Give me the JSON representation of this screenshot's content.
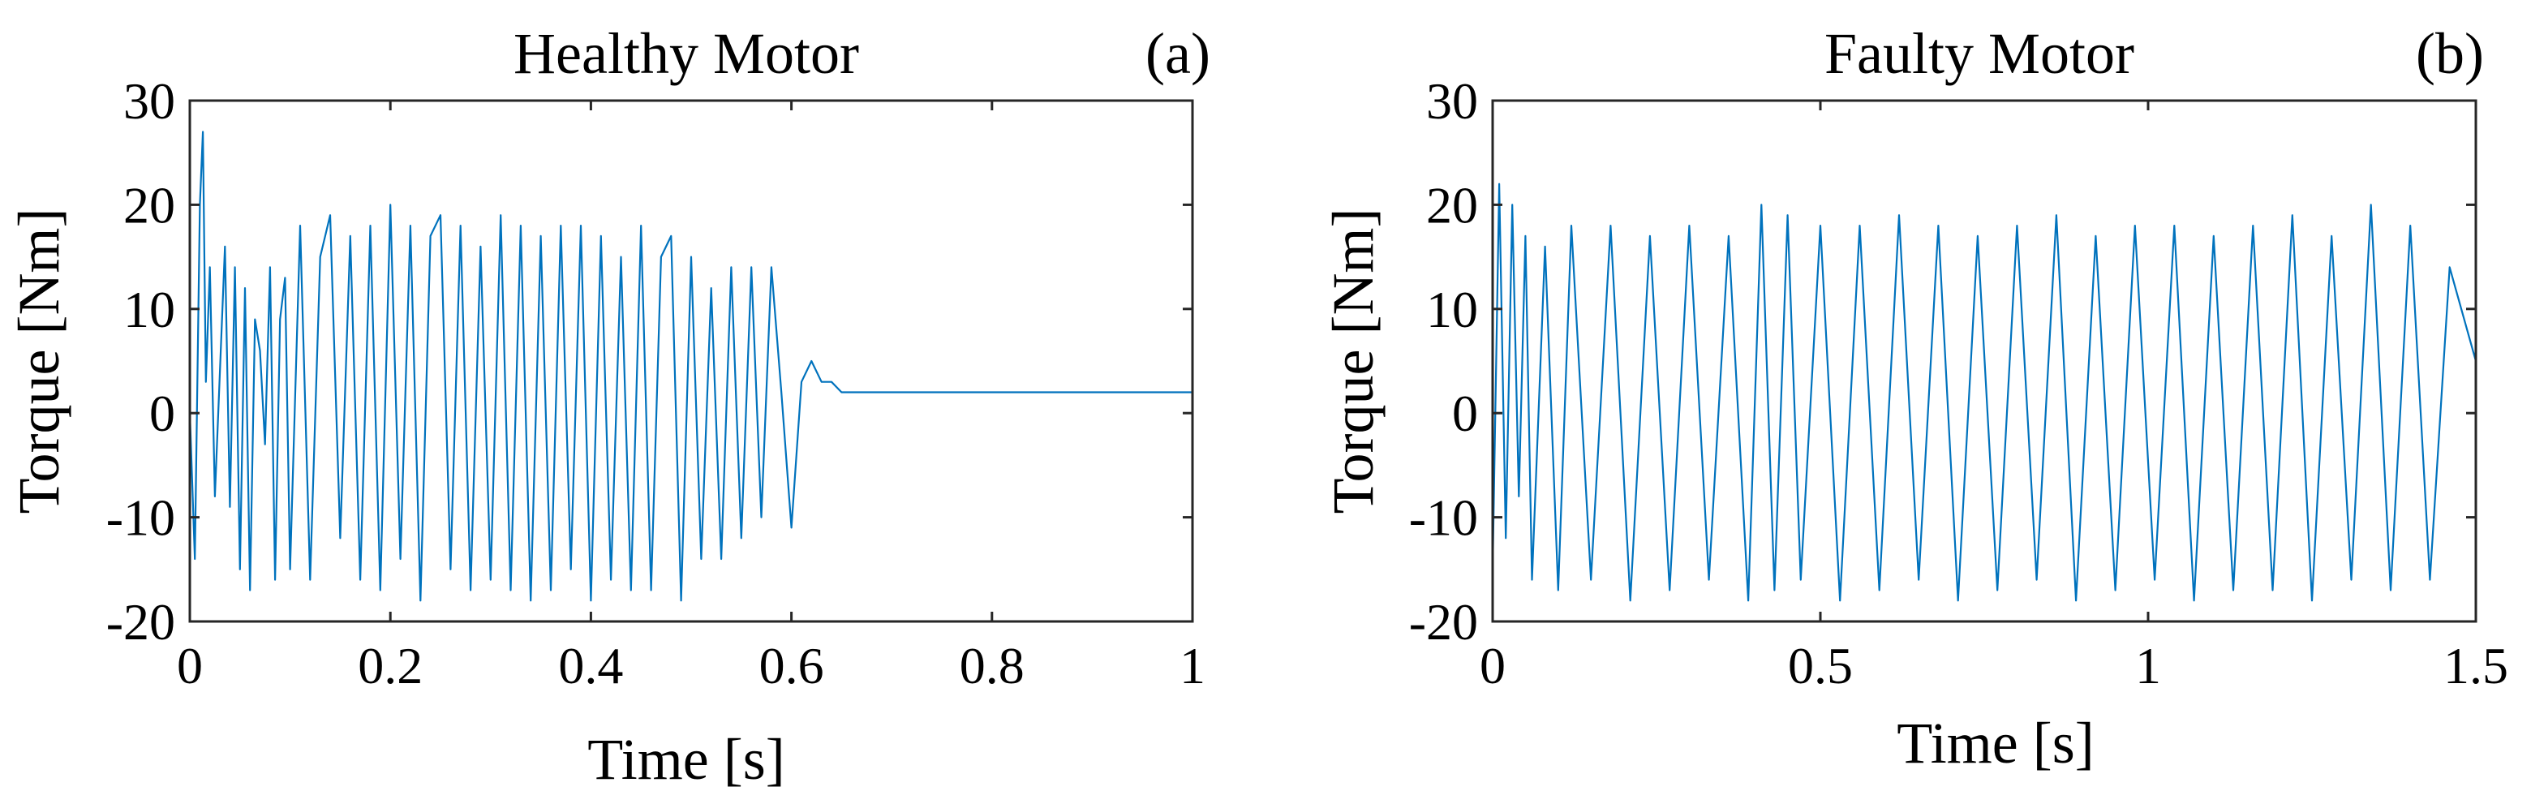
{
  "colors": {
    "signal": "#0072BD",
    "axes": "#262626",
    "background": "#ffffff"
  },
  "chart_data": [
    {
      "type": "line",
      "panel_tag": "(a)",
      "title": "Healthy Motor",
      "xlabel": "Time [s]",
      "ylabel": "Torque [Nm]",
      "xlim": [
        0,
        1
      ],
      "ylim": [
        -20,
        30
      ],
      "x_ticks": [
        0,
        0.2,
        0.4,
        0.6,
        0.8,
        1
      ],
      "x_tick_labels": [
        "0",
        "0.2",
        "0.4",
        "0.6",
        "0.8",
        "1"
      ],
      "y_ticks": [
        -20,
        -10,
        0,
        10,
        20,
        30
      ],
      "y_tick_labels": [
        "-20",
        "-10",
        "0",
        "10",
        "20",
        "30"
      ],
      "grid": false,
      "series": [
        {
          "x": [
            0,
            0.005,
            0.01,
            0.013,
            0.016,
            0.02,
            0.025,
            0.03,
            0.035,
            0.04,
            0.045,
            0.05,
            0.055,
            0.06,
            0.065,
            0.07,
            0.075,
            0.08,
            0.085,
            0.09,
            0.095,
            0.1,
            0.11,
            0.12,
            0.13,
            0.14,
            0.15,
            0.16,
            0.17,
            0.18,
            0.19,
            0.2,
            0.21,
            0.22,
            0.23,
            0.24,
            0.25,
            0.26,
            0.27,
            0.28,
            0.29,
            0.3,
            0.31,
            0.32,
            0.33,
            0.34,
            0.35,
            0.36,
            0.37,
            0.38,
            0.39,
            0.4,
            0.41,
            0.42,
            0.43,
            0.44,
            0.45,
            0.46,
            0.47,
            0.48,
            0.49,
            0.5,
            0.51,
            0.52,
            0.53,
            0.54,
            0.55,
            0.56,
            0.57,
            0.58,
            0.59,
            0.6,
            0.61,
            0.62,
            0.63,
            0.64,
            0.65,
            0.66,
            0.67,
            0.68,
            0.7,
            0.75,
            0.8,
            0.85,
            0.9,
            0.95,
            1
          ],
          "values": [
            0,
            -14,
            20,
            27,
            3,
            14,
            -8,
            4,
            16,
            -9,
            14,
            -15,
            12,
            -17,
            9,
            6,
            -3,
            14,
            -16,
            9,
            13,
            -15,
            18,
            -16,
            15,
            19,
            -12,
            17,
            -16,
            18,
            -17,
            20,
            -14,
            18,
            -18,
            17,
            19,
            -15,
            18,
            -17,
            16,
            -16,
            19,
            -17,
            18,
            -18,
            17,
            -17,
            18,
            -15,
            18,
            -18,
            17,
            -16,
            15,
            -17,
            18,
            -17,
            15,
            17,
            -18,
            15,
            -14,
            12,
            -14,
            14,
            -12,
            14,
            -10,
            14,
            2,
            -11,
            3,
            5,
            3,
            3,
            2,
            2,
            2,
            2,
            2,
            2,
            2,
            2,
            2,
            2,
            2
          ]
        }
      ]
    },
    {
      "type": "line",
      "panel_tag": "(b)",
      "title": "Faulty Motor",
      "xlabel": "Time [s]",
      "ylabel": "Torque [Nm]",
      "xlim": [
        0,
        1.5
      ],
      "ylim": [
        -20,
        30
      ],
      "x_ticks": [
        0,
        0.5,
        1,
        1.5
      ],
      "x_tick_labels": [
        "0",
        "0.5",
        "1",
        "1.5"
      ],
      "y_ticks": [
        -20,
        -10,
        0,
        10,
        20,
        30
      ],
      "y_tick_labels": [
        "-20",
        "-10",
        "0",
        "10",
        "20",
        "30"
      ],
      "grid": false,
      "series": [
        {
          "x": [
            0,
            0.01,
            0.02,
            0.03,
            0.04,
            0.05,
            0.06,
            0.08,
            0.1,
            0.12,
            0.15,
            0.18,
            0.21,
            0.24,
            0.27,
            0.3,
            0.33,
            0.36,
            0.39,
            0.41,
            0.43,
            0.45,
            0.47,
            0.5,
            0.53,
            0.56,
            0.59,
            0.62,
            0.65,
            0.68,
            0.71,
            0.74,
            0.77,
            0.8,
            0.83,
            0.86,
            0.89,
            0.92,
            0.95,
            0.98,
            1.01,
            1.04,
            1.07,
            1.1,
            1.13,
            1.16,
            1.19,
            1.22,
            1.25,
            1.28,
            1.31,
            1.34,
            1.37,
            1.4,
            1.43,
            1.46,
            1.5
          ],
          "values": [
            -15,
            22,
            -12,
            20,
            -8,
            17,
            -16,
            16,
            -17,
            18,
            -16,
            18,
            -18,
            17,
            -17,
            18,
            -16,
            17,
            -18,
            20,
            -17,
            19,
            -16,
            18,
            -18,
            18,
            -17,
            19,
            -16,
            18,
            -18,
            17,
            -17,
            18,
            -16,
            19,
            -18,
            17,
            -17,
            18,
            -16,
            18,
            -18,
            17,
            -17,
            18,
            -17,
            19,
            -18,
            17,
            -16,
            20,
            -17,
            18,
            -16,
            14,
            5
          ]
        }
      ]
    }
  ]
}
